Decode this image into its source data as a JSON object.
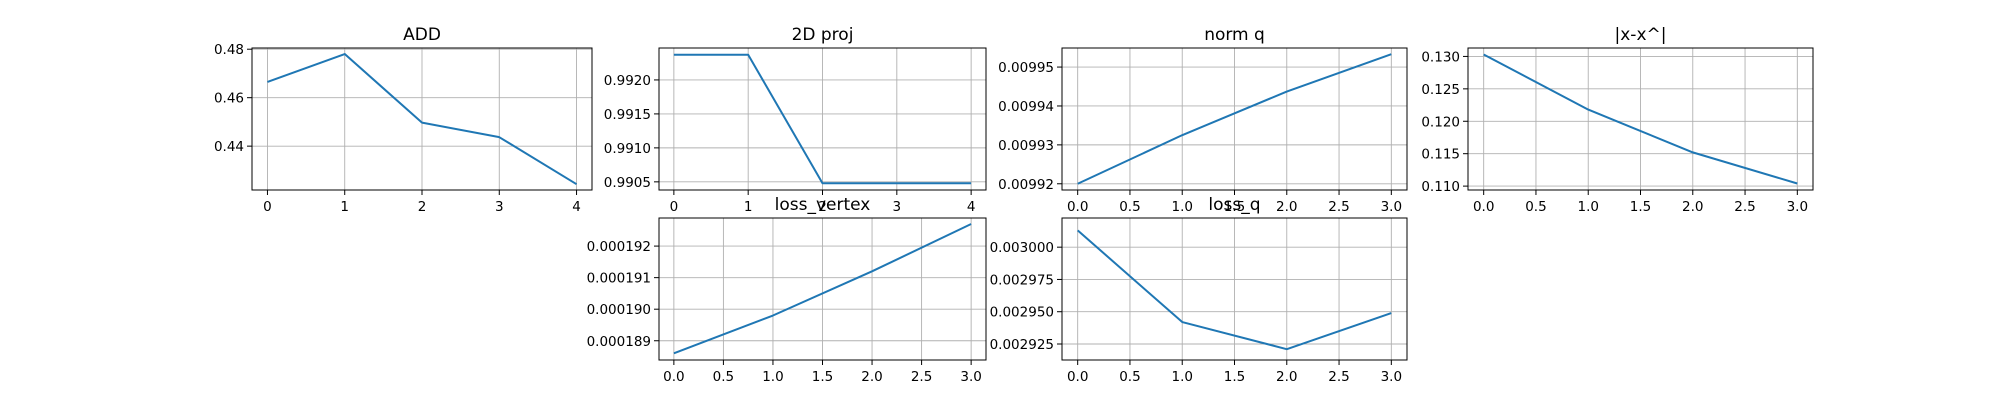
{
  "style": {
    "line_color": "#1f77b4",
    "grid": true
  },
  "chart_data": [
    {
      "type": "line",
      "title": "ADD",
      "x": [
        0,
        1,
        2,
        3,
        4
      ],
      "series": [
        {
          "values": [
            0.4665,
            0.478,
            0.4497,
            0.4437,
            0.4243
          ]
        }
      ],
      "xlim": [
        -0.2,
        4.2
      ],
      "ylim": [
        0.4219,
        0.4805
      ],
      "xticks": [
        0,
        1,
        2,
        3,
        4
      ],
      "xticklabels": [
        "0",
        "1",
        "2",
        "3",
        "4"
      ],
      "yticks": [
        0.44,
        0.46,
        0.48
      ],
      "yticklabels": [
        "0.44",
        "0.46",
        "0.48"
      ]
    },
    {
      "type": "line",
      "title": "2D proj",
      "x": [
        0,
        1,
        2,
        3,
        4
      ],
      "series": [
        {
          "values": [
            0.99237,
            0.99237,
            0.99048,
            0.99048,
            0.99048
          ]
        }
      ],
      "xlim": [
        -0.2,
        4.2
      ],
      "ylim": [
        0.99038,
        0.99247
      ],
      "xticks": [
        0,
        1,
        2,
        3,
        4
      ],
      "xticklabels": [
        "0",
        "1",
        "2",
        "3",
        "4"
      ],
      "yticks": [
        0.9905,
        0.991,
        0.9915,
        0.992
      ],
      "yticklabels": [
        "0.9905",
        "0.9910",
        "0.9915",
        "0.9920"
      ]
    },
    {
      "type": "line",
      "title": "norm q",
      "x": [
        0,
        1,
        2,
        3
      ],
      "series": [
        {
          "values": [
            0.00992,
            0.0099325,
            0.0099437,
            0.0099533
          ]
        }
      ],
      "xlim": [
        -0.15,
        3.15
      ],
      "ylim": [
        0.0099184,
        0.0099549
      ],
      "xticks": [
        0,
        0.5,
        1,
        1.5,
        2,
        2.5,
        3
      ],
      "xticklabels": [
        "0.0",
        "0.5",
        "1.0",
        "1.5",
        "2.0",
        "2.5",
        "3.0"
      ],
      "yticks": [
        0.00992,
        0.00993,
        0.00994,
        0.00995
      ],
      "yticklabels": [
        "0.00992",
        "0.00993",
        "0.00994",
        "0.00995"
      ]
    },
    {
      "type": "line",
      "title": "|x-x^|",
      "x": [
        0,
        1,
        2,
        3
      ],
      "series": [
        {
          "values": [
            0.1303,
            0.1218,
            0.1152,
            0.1104
          ]
        }
      ],
      "xlim": [
        -0.15,
        3.15
      ],
      "ylim": [
        0.1094,
        0.1313
      ],
      "xticks": [
        0,
        0.5,
        1,
        1.5,
        2,
        2.5,
        3
      ],
      "xticklabels": [
        "0.0",
        "0.5",
        "1.0",
        "1.5",
        "2.0",
        "2.5",
        "3.0"
      ],
      "yticks": [
        0.11,
        0.115,
        0.12,
        0.125,
        0.13
      ],
      "yticklabels": [
        "0.110",
        "0.115",
        "0.120",
        "0.125",
        "0.130"
      ]
    },
    {
      "type": "line",
      "title": "loss_vertex",
      "x": [
        0,
        1,
        2,
        3
      ],
      "series": [
        {
          "values": [
            0.0001886,
            0.0001898,
            0.0001912,
            0.0001927
          ]
        }
      ],
      "xlim": [
        -0.15,
        3.15
      ],
      "ylim": [
        0.00018839,
        0.00019289
      ],
      "xticks": [
        0,
        0.5,
        1,
        1.5,
        2,
        2.5,
        3
      ],
      "xticklabels": [
        "0.0",
        "0.5",
        "1.0",
        "1.5",
        "2.0",
        "2.5",
        "3.0"
      ],
      "yticks": [
        0.000189,
        0.00019,
        0.000191,
        0.000192
      ],
      "yticklabels": [
        "0.000189",
        "0.000190",
        "0.000191",
        "0.000192"
      ]
    },
    {
      "type": "line",
      "title": "loss_q",
      "x": [
        0,
        1,
        2,
        3
      ],
      "series": [
        {
          "values": [
            0.003013,
            0.002942,
            0.002921,
            0.002949
          ]
        }
      ],
      "xlim": [
        -0.15,
        3.15
      ],
      "ylim": [
        0.0029126,
        0.0030226
      ],
      "xticks": [
        0,
        0.5,
        1,
        1.5,
        2,
        2.5,
        3
      ],
      "xticklabels": [
        "0.0",
        "0.5",
        "1.0",
        "1.5",
        "2.0",
        "2.5",
        "3.0"
      ],
      "yticks": [
        0.002925,
        0.00295,
        0.002975,
        0.003
      ],
      "yticklabels": [
        "0.002925",
        "0.002950",
        "0.002975",
        "0.003000"
      ]
    }
  ]
}
